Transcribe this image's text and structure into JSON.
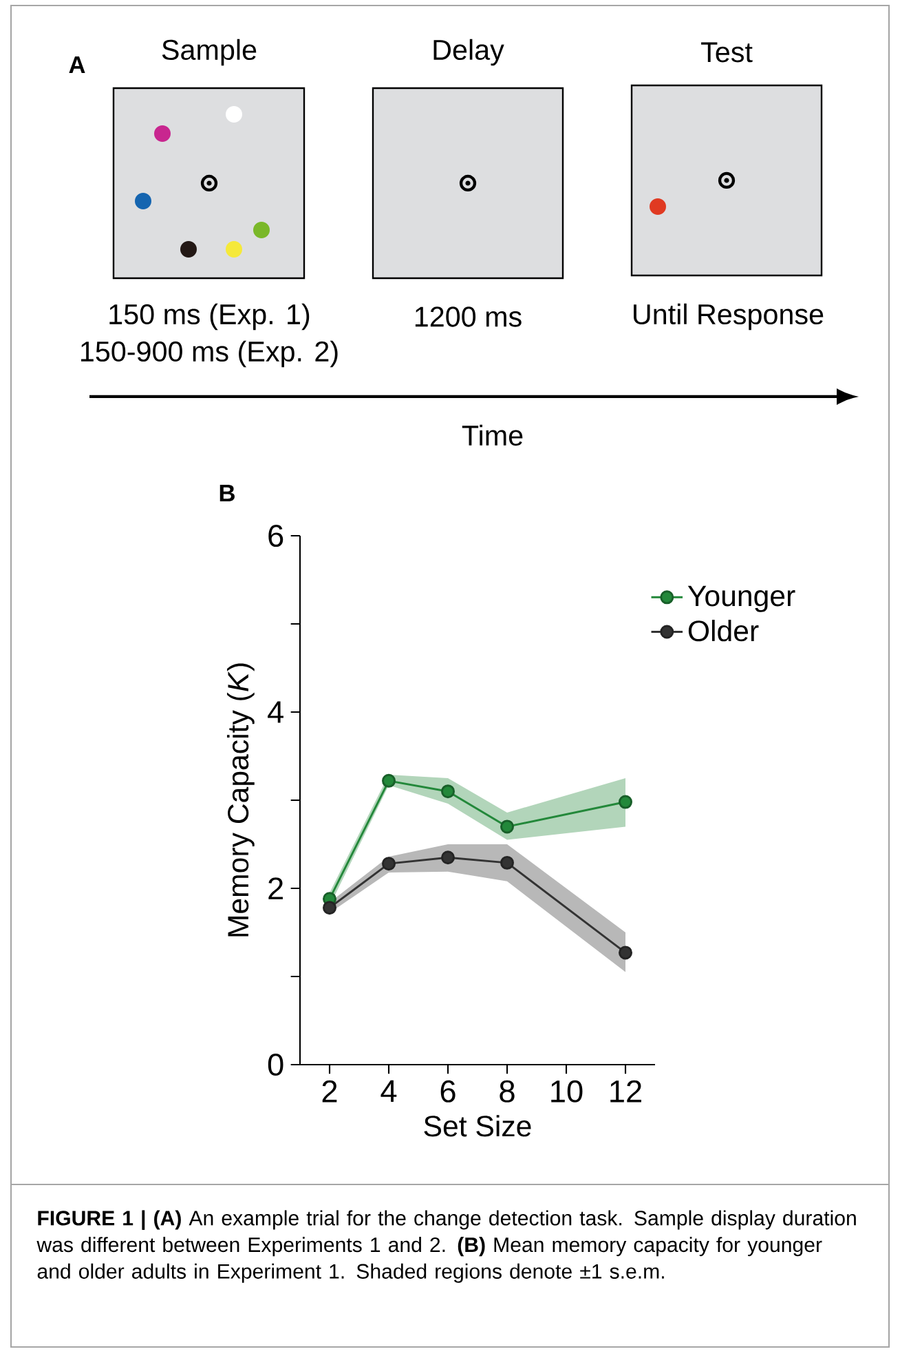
{
  "chart_data": [
    {
      "type": "other",
      "title": "A",
      "annotations": [
        "Sample",
        "Delay",
        "Test",
        "150 ms (Exp. 1)",
        "150-900 ms (Exp. 2)",
        "1200 ms",
        "Until Response",
        "Time"
      ]
    },
    {
      "type": "line",
      "title": "B",
      "xlabel": "Set Size",
      "ylabel": "Memory Capacity (*K*)",
      "x": [
        2,
        4,
        6,
        8,
        12
      ],
      "xlim": [
        1,
        13
      ],
      "xticks": [
        2,
        4,
        6,
        8,
        10,
        12
      ],
      "ylim": [
        0,
        6
      ],
      "yticks": [
        0,
        {
          "value": 1,
          "label": null
        },
        2,
        {
          "value": 3,
          "label": null
        },
        4,
        {
          "value": 5,
          "label": null
        },
        6
      ],
      "marker": "circle",
      "legend": "top right",
      "series": [
        {
          "name": "Younger",
          "color": "#23883a",
          "values": [
            1.88,
            3.22,
            3.1,
            2.7,
            2.98
          ],
          "lower": [
            1.8,
            3.17,
            2.96,
            2.55,
            2.7
          ],
          "upper": [
            1.95,
            3.29,
            3.25,
            2.86,
            3.25
          ]
        },
        {
          "name": "Older",
          "color": "#333333",
          "values": [
            1.78,
            2.28,
            2.35,
            2.29,
            1.27
          ],
          "lower": [
            1.72,
            2.18,
            2.19,
            2.08,
            1.05
          ],
          "upper": [
            1.84,
            2.36,
            2.5,
            2.5,
            1.5
          ]
        }
      ],
      "annotations": [
        "**FIGURE 1 | (A)** An example trial for the change detection task. Sample display duration was different between Experiments 1 and 2. **(B)** Mean memory capacity for younger and older adults in Experiment 1. Shaded regions denote ±1 s.e.m."
      ]
    }
  ]
}
